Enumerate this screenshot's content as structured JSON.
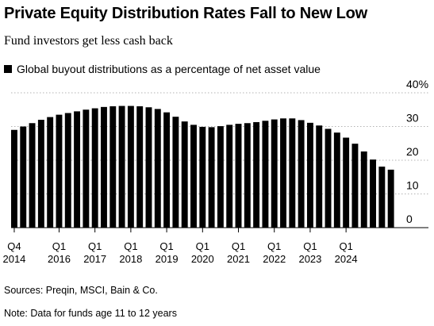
{
  "header": {
    "title": "Private Equity Distribution Rates Fall to New Low",
    "subtitle": "Fund investors get less cash back"
  },
  "footer": {
    "source": "Sources: Preqin, MSCI, Bain & Co.",
    "note": "Note: Data for funds age 11 to 12 years"
  },
  "colors": {
    "bar": "#000000",
    "grid": "#b3b3b3",
    "background": "#ffffff"
  },
  "chart_data": {
    "type": "bar",
    "legend": [
      "Global buyout distributions as a percentage of net asset value"
    ],
    "legend_position": "top-left",
    "ylim": [
      0,
      40
    ],
    "y_ticks": [
      {
        "value": 40,
        "label": "40%"
      },
      {
        "value": 30,
        "label": "30"
      },
      {
        "value": 20,
        "label": "20"
      },
      {
        "value": 10,
        "label": "10"
      },
      {
        "value": 0,
        "label": "0"
      }
    ],
    "y_axis_side": "right",
    "grid": true,
    "x_ticks": [
      {
        "index": 0,
        "line1": "Q4",
        "line2": "2014"
      },
      {
        "index": 5,
        "line1": "Q1",
        "line2": "2016"
      },
      {
        "index": 9,
        "line1": "Q1",
        "line2": "2017"
      },
      {
        "index": 13,
        "line1": "Q1",
        "line2": "2018"
      },
      {
        "index": 17,
        "line1": "Q1",
        "line2": "2019"
      },
      {
        "index": 21,
        "line1": "Q1",
        "line2": "2020"
      },
      {
        "index": 25,
        "line1": "Q1",
        "line2": "2021"
      },
      {
        "index": 29,
        "line1": "Q1",
        "line2": "2022"
      },
      {
        "index": 33,
        "line1": "Q1",
        "line2": "2023"
      },
      {
        "index": 37,
        "line1": "Q1",
        "line2": "2024"
      }
    ],
    "categories": [
      "Q4 2014",
      "Q1 2015",
      "Q2 2015",
      "Q3 2015",
      "Q4 2015",
      "Q1 2016",
      "Q2 2016",
      "Q3 2016",
      "Q4 2016",
      "Q1 2017",
      "Q2 2017",
      "Q3 2017",
      "Q4 2017",
      "Q1 2018",
      "Q2 2018",
      "Q3 2018",
      "Q4 2018",
      "Q1 2019",
      "Q2 2019",
      "Q3 2019",
      "Q4 2019",
      "Q1 2020",
      "Q2 2020",
      "Q3 2020",
      "Q4 2020",
      "Q1 2021",
      "Q2 2021",
      "Q3 2021",
      "Q4 2021",
      "Q1 2022",
      "Q2 2022",
      "Q3 2022",
      "Q4 2022",
      "Q1 2023",
      "Q2 2023",
      "Q3 2023",
      "Q4 2023",
      "Q1 2024",
      "Q2 2024",
      "Q3 2024",
      "Q4 2024",
      "Q1 2025",
      "Q2 2025"
    ],
    "series": [
      {
        "values": [
          29.0,
          30.0,
          31.0,
          32.0,
          32.8,
          33.5,
          34.0,
          34.5,
          35.0,
          35.4,
          35.8,
          36.0,
          36.1,
          36.1,
          36.0,
          35.7,
          35.2,
          34.2,
          32.9,
          31.5,
          30.5,
          29.9,
          29.8,
          30.1,
          30.5,
          30.8,
          31.0,
          31.3,
          31.7,
          32.1,
          32.4,
          32.4,
          31.9,
          31.1,
          30.3,
          29.3,
          28.2,
          26.7,
          24.9,
          22.6,
          20.2,
          18.1,
          17.2
        ]
      }
    ]
  }
}
